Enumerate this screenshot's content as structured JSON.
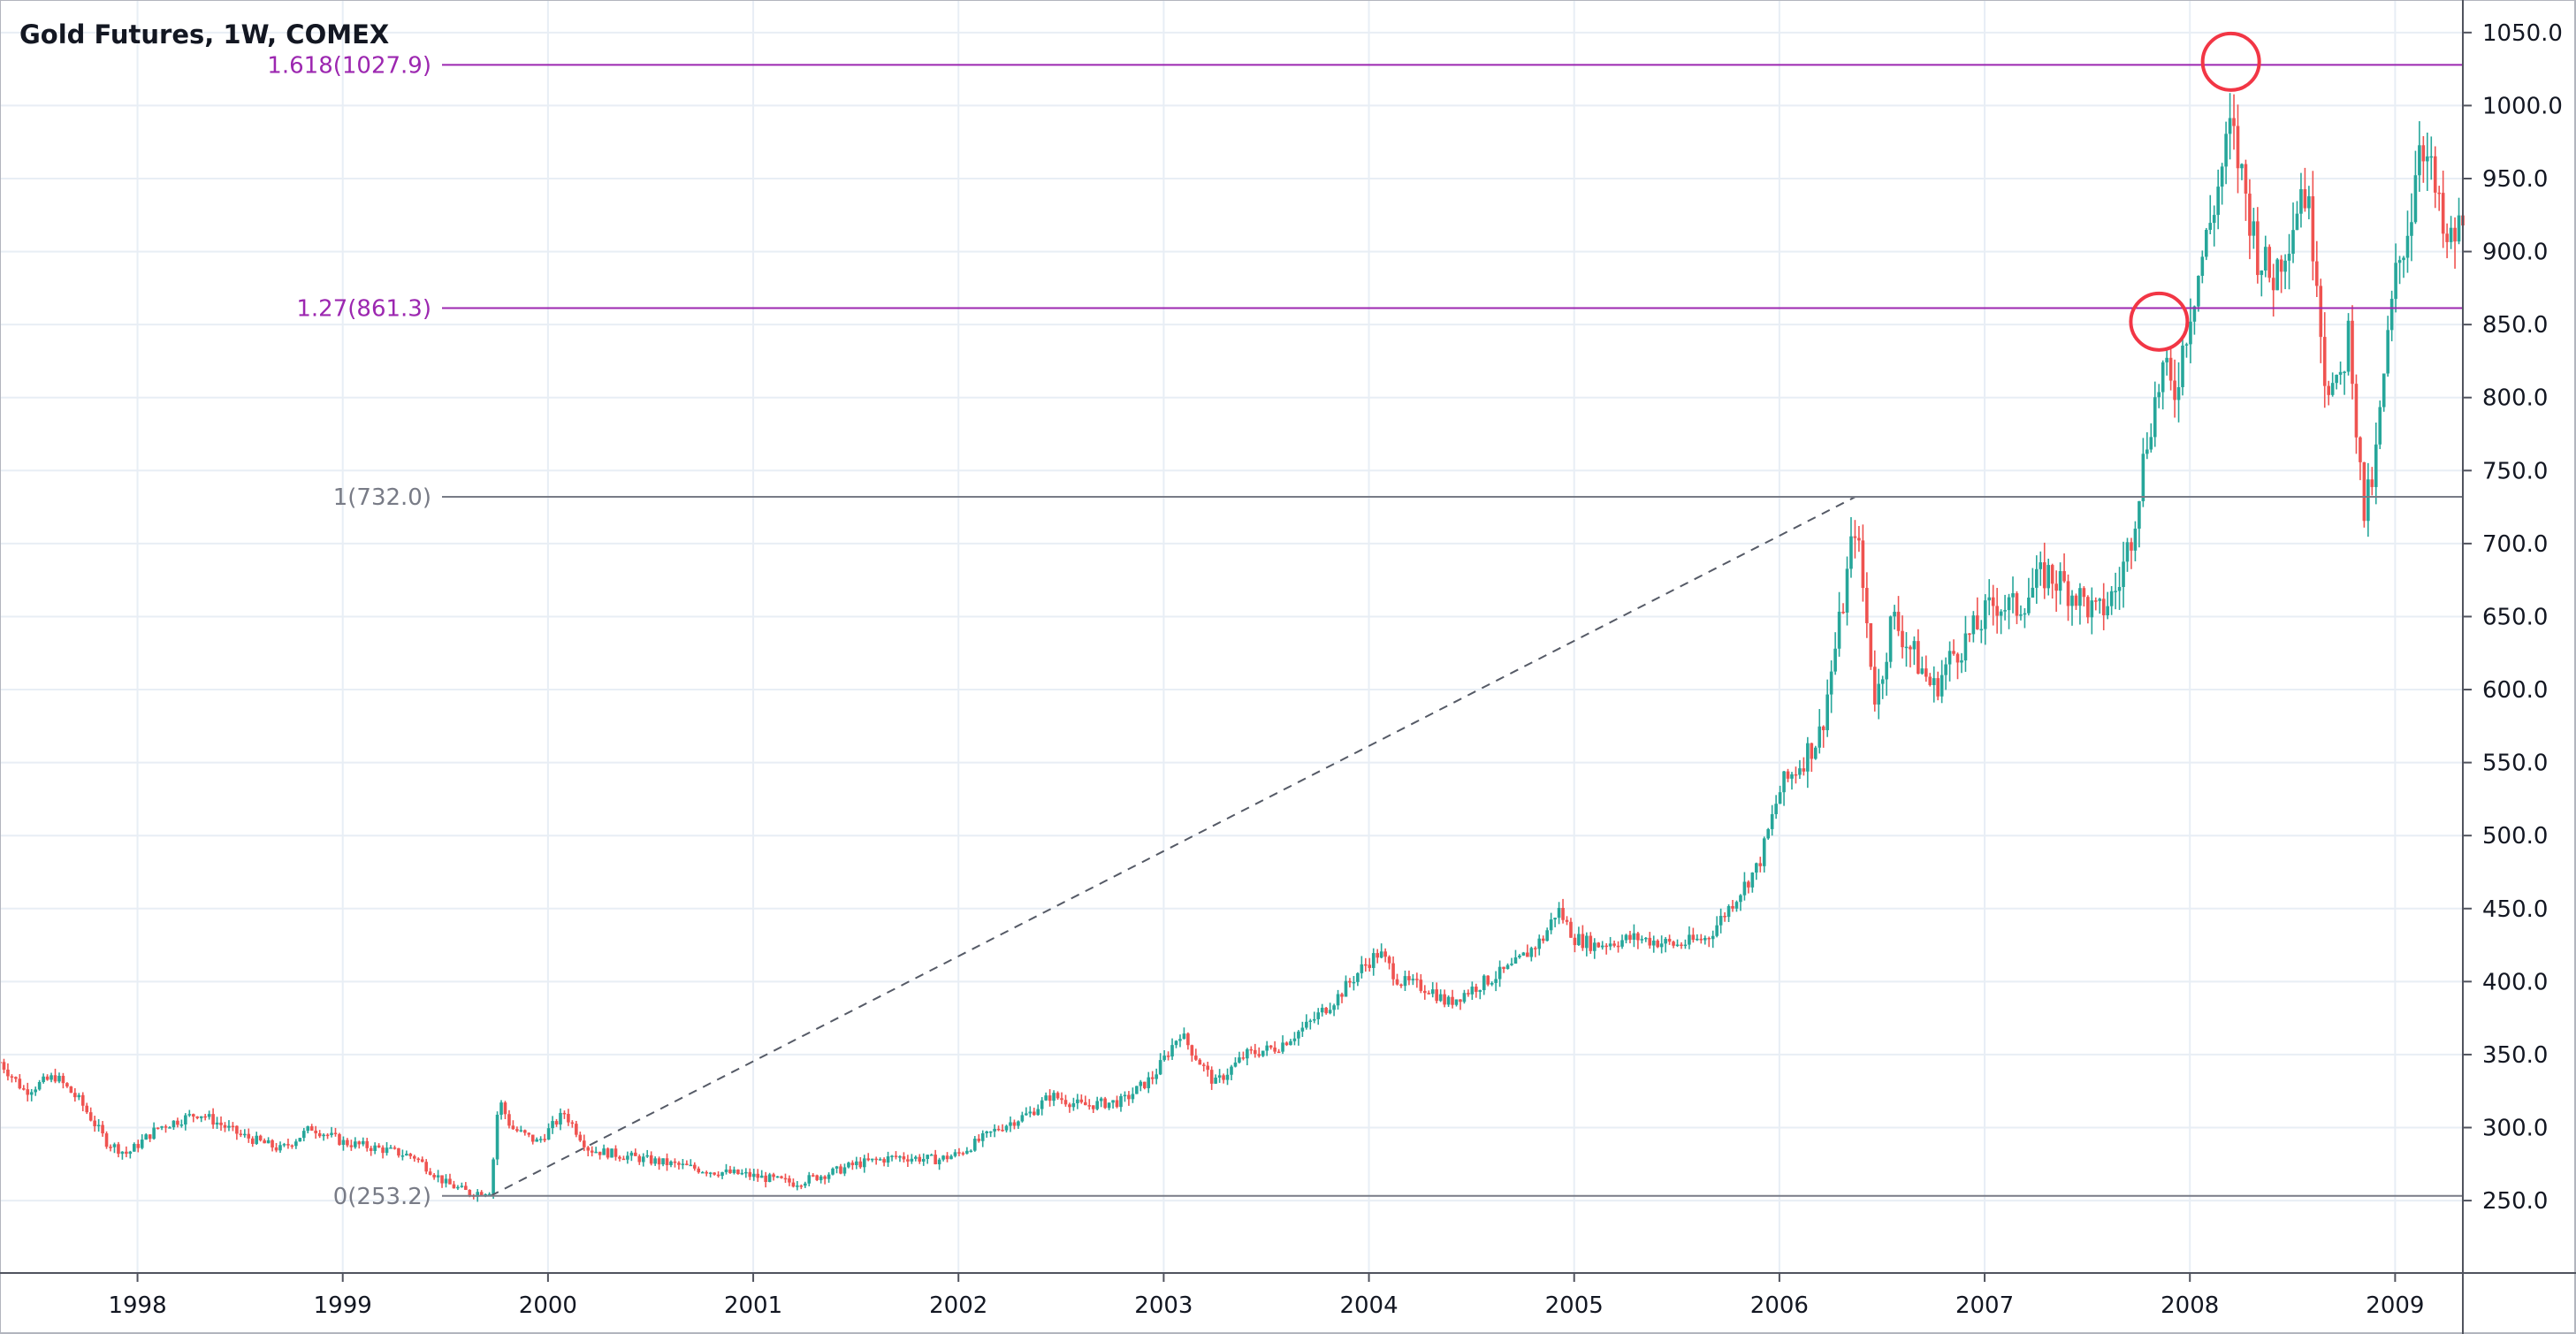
{
  "chart_data": {
    "type": "candlestick",
    "title": "Gold Futures, 1W, COMEX",
    "x_tick_labels": [
      "1998",
      "1999",
      "2000",
      "2001",
      "2002",
      "2003",
      "2004",
      "2005",
      "2006",
      "2007",
      "2008",
      "2009"
    ],
    "y_tick_labels": [
      "250.0",
      "300.0",
      "350.0",
      "400.0",
      "450.0",
      "500.0",
      "550.0",
      "600.0",
      "650.0",
      "700.0",
      "750.0",
      "800.0",
      "850.0",
      "900.0",
      "950.0",
      "1000.0",
      "1050.0"
    ],
    "y_ticks": [
      250,
      300,
      350,
      400,
      450,
      500,
      550,
      600,
      650,
      700,
      750,
      800,
      850,
      900,
      950,
      1000,
      1050
    ],
    "ylim": [
      200.4,
      1072.3
    ],
    "xlim": [
      1997.33,
      2009.33
    ],
    "grid": true,
    "colors": {
      "up": "#26a69a",
      "down": "#ef5350",
      "fib_main": "#9c27b0",
      "fib_base": "#787b86",
      "highlight": "#f23645"
    },
    "fib_levels": [
      {
        "ratio": 0,
        "price": 253.2,
        "label": "0(253.2)",
        "color": "#787b86"
      },
      {
        "ratio": 1,
        "price": 732.0,
        "label": "1(732.0)",
        "color": "#787b86"
      },
      {
        "ratio": 1.27,
        "price": 861.3,
        "label": "1.27(861.3)",
        "color": "#9c27b0"
      },
      {
        "ratio": 1.618,
        "price": 1027.9,
        "label": "1.618(1027.9)",
        "color": "#9c27b0"
      }
    ],
    "trend_line": {
      "from": {
        "x": 1999.72,
        "y": 253.2
      },
      "to": {
        "x": 2006.37,
        "y": 732.0
      }
    },
    "highlight_circles": [
      {
        "x": 2007.85,
        "y": 852
      },
      {
        "x": 2008.2,
        "y": 1030
      }
    ],
    "price_path": [
      [
        1997.33,
        345
      ],
      [
        1997.45,
        325
      ],
      [
        1997.6,
        335
      ],
      [
        1997.72,
        318
      ],
      [
        1997.85,
        290
      ],
      [
        1997.95,
        282
      ],
      [
        1998.1,
        300
      ],
      [
        1998.3,
        310
      ],
      [
        1998.5,
        295
      ],
      [
        1998.7,
        285
      ],
      [
        1998.85,
        300
      ],
      [
        1999.0,
        290
      ],
      [
        1999.2,
        285
      ],
      [
        1999.35,
        280
      ],
      [
        1999.5,
        262
      ],
      [
        1999.62,
        255
      ],
      [
        1999.72,
        257
      ],
      [
        1999.76,
        320
      ],
      [
        1999.82,
        300
      ],
      [
        1999.95,
        290
      ],
      [
        2000.08,
        310
      ],
      [
        2000.2,
        285
      ],
      [
        2000.4,
        280
      ],
      [
        2000.6,
        275
      ],
      [
        2000.8,
        270
      ],
      [
        2000.95,
        268
      ],
      [
        2001.2,
        262
      ],
      [
        2001.4,
        270
      ],
      [
        2001.5,
        275
      ],
      [
        2001.7,
        280
      ],
      [
        2001.9,
        278
      ],
      [
        2002.0,
        282
      ],
      [
        2002.2,
        300
      ],
      [
        2002.35,
        310
      ],
      [
        2002.45,
        322
      ],
      [
        2002.6,
        315
      ],
      [
        2002.8,
        318
      ],
      [
        2002.95,
        335
      ],
      [
        2003.08,
        365
      ],
      [
        2003.15,
        350
      ],
      [
        2003.25,
        330
      ],
      [
        2003.4,
        350
      ],
      [
        2003.55,
        355
      ],
      [
        2003.7,
        370
      ],
      [
        2003.85,
        390
      ],
      [
        2003.97,
        410
      ],
      [
        2004.05,
        420
      ],
      [
        2004.15,
        400
      ],
      [
        2004.3,
        395
      ],
      [
        2004.38,
        385
      ],
      [
        2004.5,
        395
      ],
      [
        2004.7,
        410
      ],
      [
        2004.85,
        430
      ],
      [
        2004.92,
        450
      ],
      [
        2005.0,
        430
      ],
      [
        2005.1,
        425
      ],
      [
        2005.3,
        430
      ],
      [
        2005.5,
        425
      ],
      [
        2005.65,
        430
      ],
      [
        2005.8,
        460
      ],
      [
        2005.9,
        480
      ],
      [
        2006.0,
        530
      ],
      [
        2006.1,
        550
      ],
      [
        2006.2,
        570
      ],
      [
        2006.3,
        650
      ],
      [
        2006.37,
        715
      ],
      [
        2006.43,
        640
      ],
      [
        2006.47,
        590
      ],
      [
        2006.55,
        650
      ],
      [
        2006.65,
        625
      ],
      [
        2006.75,
        600
      ],
      [
        2006.85,
        625
      ],
      [
        2006.95,
        640
      ],
      [
        2007.05,
        660
      ],
      [
        2007.15,
        655
      ],
      [
        2007.3,
        680
      ],
      [
        2007.45,
        665
      ],
      [
        2007.55,
        650
      ],
      [
        2007.65,
        670
      ],
      [
        2007.72,
        710
      ],
      [
        2007.8,
        780
      ],
      [
        2007.87,
        820
      ],
      [
        2007.92,
        800
      ],
      [
        2008.0,
        860
      ],
      [
        2008.1,
        920
      ],
      [
        2008.2,
        985
      ],
      [
        2008.27,
        940
      ],
      [
        2008.33,
        900
      ],
      [
        2008.4,
        880
      ],
      [
        2008.5,
        920
      ],
      [
        2008.55,
        950
      ],
      [
        2008.62,
        890
      ],
      [
        2008.65,
        820
      ],
      [
        2008.72,
        800
      ],
      [
        2008.78,
        850
      ],
      [
        2008.82,
        760
      ],
      [
        2008.85,
        720
      ],
      [
        2008.9,
        750
      ],
      [
        2008.95,
        820
      ],
      [
        2009.0,
        880
      ],
      [
        2009.08,
        930
      ],
      [
        2009.12,
        985
      ],
      [
        2009.18,
        950
      ],
      [
        2009.25,
        900
      ],
      [
        2009.33,
        920
      ]
    ]
  }
}
